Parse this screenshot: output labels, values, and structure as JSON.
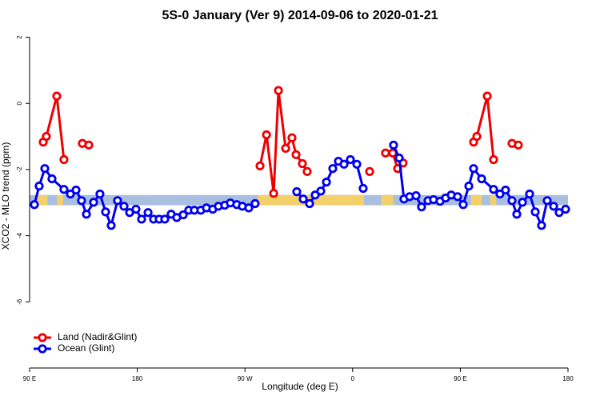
{
  "chart_data": {
    "type": "line",
    "title": "5S-0 January (Ver 9)   2014-09-06 to 2020-01-21",
    "x_label": "Longitude (deg E)",
    "y_label": "XCO2 - MLO trend (ppm)",
    "xlim": [
      90,
      540
    ],
    "xticks": [
      {
        "value": 90,
        "label": "90 E"
      },
      {
        "value": 180,
        "label": "180"
      },
      {
        "value": 270,
        "label": "90 W"
      },
      {
        "value": 360,
        "label": "0"
      },
      {
        "value": 450,
        "label": "90 E"
      },
      {
        "value": 540,
        "label": "180"
      }
    ],
    "ylim": [
      -8,
      2.4
    ],
    "yticks": [
      2,
      0,
      -2,
      -4,
      -6
    ],
    "legend": "bottom-left",
    "band": {
      "range": [
        -3.08,
        -2.77
      ],
      "color": "#a9bfe0",
      "land_color": "#f2d06a",
      "land_ranges": [
        [
          96,
          105
        ],
        [
          113,
          118
        ],
        [
          280.6,
          369.5
        ],
        [
          384,
          394
        ],
        [
          459,
          468
        ],
        [
          475,
          480
        ]
      ]
    },
    "series": [
      {
        "name": "Land (Nadir&Glint)",
        "color": "#ee0000",
        "x": [
          101.4,
          104.0,
          112.7,
          118.7,
          null,
          134.1,
          null,
          139.5,
          null,
          282.6,
          288.0,
          294.0,
          298.0,
          304.0,
          309.3,
          312.7,
          318.0,
          322.0,
          null,
          374.2,
          null,
          387.5,
          393.5,
          397.6,
          402.2,
          null,
          461.1,
          463.8,
          472.5,
          477.8,
          null,
          493.2,
          null,
          498.5
        ],
        "values": [
          -1.17,
          -1.0,
          0.22,
          -1.7,
          null,
          -1.21,
          null,
          -1.26,
          null,
          -1.89,
          -0.95,
          -2.72,
          0.39,
          -1.36,
          -1.04,
          -1.55,
          -1.82,
          -2.06,
          null,
          -2.06,
          null,
          -1.5,
          -1.5,
          -1.97,
          -1.8,
          null,
          -1.17,
          -1.0,
          0.22,
          -1.7,
          null,
          -1.21,
          null,
          -1.26
        ]
      },
      {
        "name": "Ocean (Glint)",
        "color": "#0000ee",
        "x": [
          94.0,
          98.0,
          102.7,
          108.7,
          118.7,
          124.1,
          128.8,
          133.4,
          137.5,
          143.5,
          148.8,
          153.5,
          158.2,
          163.5,
          168.9,
          173.6,
          178.9,
          183.6,
          189.0,
          193.6,
          198.3,
          203.0,
          208.3,
          213.0,
          218.4,
          223.0,
          227.7,
          233.1,
          237.8,
          243.1,
          247.8,
          253.1,
          257.8,
          263.2,
          267.8,
          273.2,
          278.5,
          null,
          313.3,
          318.7,
          324.0,
          328.7,
          333.4,
          338.1,
          343.4,
          348.1,
          352.8,
          358.1,
          363.5,
          368.8,
          null,
          394.2,
          398.9,
          402.9,
          407.6,
          413.0,
          417.6,
          423.0,
          427.6,
          433.0,
          437.7,
          442.4,
          447.7,
          452.4,
          457.1,
          461.1,
          467.8,
          477.8,
          483.1,
          487.8,
          493.2,
          497.2,
          501.9,
          507.9,
          512.6,
          517.9,
          522.6,
          528.0,
          532.6,
          538.0
        ],
        "values": [
          -3.06,
          -2.5,
          -1.97,
          -2.28,
          -2.6,
          -2.74,
          -2.62,
          -2.94,
          -3.35,
          -2.99,
          -2.74,
          -3.28,
          -3.69,
          -2.94,
          -3.11,
          -3.3,
          -3.2,
          -3.5,
          -3.3,
          -3.5,
          -3.5,
          -3.5,
          -3.35,
          -3.45,
          -3.37,
          -3.23,
          -3.23,
          -3.23,
          -3.16,
          -3.2,
          -3.11,
          -3.08,
          -3.01,
          -3.06,
          -3.11,
          -3.16,
          -3.03,
          null,
          -2.67,
          -2.89,
          -3.03,
          -2.77,
          -2.65,
          -2.38,
          -1.97,
          -1.75,
          -1.84,
          -1.7,
          -1.84,
          -2.57,
          null,
          -1.26,
          -1.65,
          -2.89,
          -2.82,
          -2.79,
          -3.13,
          -2.94,
          -2.91,
          -2.96,
          -2.86,
          -2.77,
          -2.82,
          -3.06,
          -2.5,
          -1.97,
          -2.28,
          -2.6,
          -2.74,
          -2.62,
          -2.94,
          -3.35,
          -2.99,
          -2.74,
          -3.28,
          -3.69,
          -2.94,
          -3.11,
          -3.3,
          -3.2
        ]
      }
    ]
  }
}
